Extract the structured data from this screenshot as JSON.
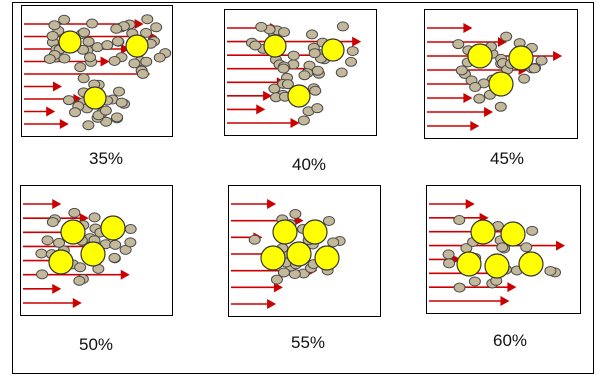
{
  "colors": {
    "particle_fill": "#c4b89a",
    "particle_stroke": "#4a4a4a",
    "core_fill": "#ffff00",
    "core_stroke": "#333333",
    "arrow": "#cc0000",
    "border": "#000000"
  },
  "panels": [
    {
      "label": "35%",
      "level": 35,
      "arrows": 9,
      "arrow_reach": [
        0.85,
        0.95,
        0.75,
        0.6,
        0.9,
        0.25,
        0.4,
        0.2,
        0.3
      ]
    },
    {
      "label": "40%",
      "level": 40,
      "arrows": 8,
      "arrow_reach": [
        0.35,
        0.95,
        0.8,
        0.6,
        0.4,
        0.3,
        0.25,
        0.5
      ]
    },
    {
      "label": "45%",
      "level": 45,
      "arrows": 8,
      "arrow_reach": [
        0.3,
        0.55,
        0.95,
        0.7,
        0.5,
        0.3,
        0.45,
        0.35
      ]
    },
    {
      "label": "50%",
      "level": 50,
      "arrows": 8,
      "arrow_reach": [
        0.25,
        0.45,
        0.35,
        0.55,
        0.35,
        0.75,
        0.25,
        0.4
      ]
    },
    {
      "label": "55%",
      "level": 55,
      "arrows": 7,
      "arrow_reach": [
        0.3,
        0.5,
        0.2,
        0.45,
        0.6,
        0.35,
        0.3
      ]
    },
    {
      "label": "60%",
      "level": 60,
      "arrows": 8,
      "arrow_reach": [
        0.3,
        0.4,
        0.55,
        0.95,
        0.2,
        0.5,
        0.6,
        0.55
      ]
    }
  ]
}
